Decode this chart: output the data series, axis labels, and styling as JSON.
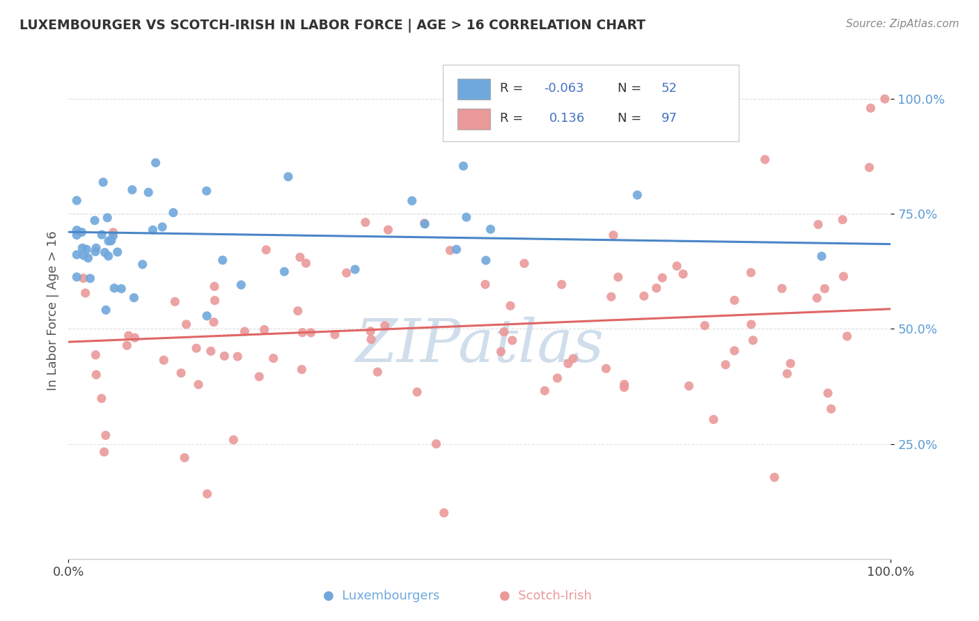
{
  "title": "LUXEMBOURGER VS SCOTCH-IRISH IN LABOR FORCE | AGE > 16 CORRELATION CHART",
  "source_text": "Source: ZipAtlas.com",
  "ylabel": "In Labor Force | Age > 16",
  "blue_color": "#6fa8dc",
  "pink_color": "#ea9999",
  "blue_line_color": "#4a86c8",
  "pink_line_color": "#e06666",
  "background_color": "#ffffff",
  "watermark_color": "#c8d8e8",
  "R_blue": -0.063,
  "N_blue": 52,
  "R_pink": 0.136,
  "N_pink": 97,
  "tick_label_color": "#5b9bd5"
}
